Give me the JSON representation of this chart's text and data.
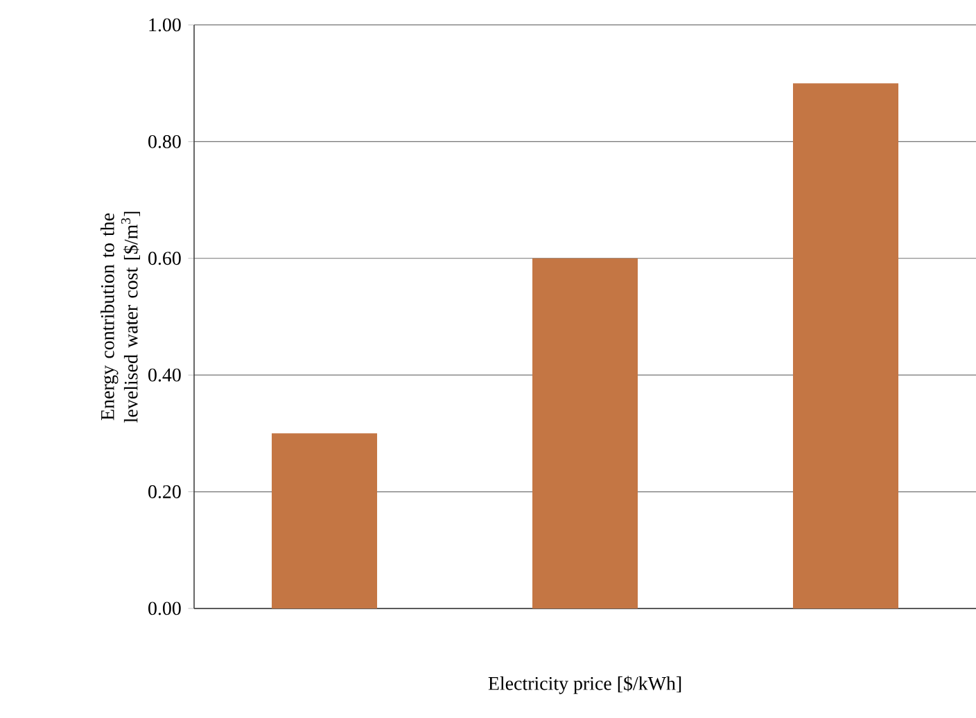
{
  "chart_data": {
    "type": "bar",
    "xlabel": "Electricity price [$/kWh]",
    "ylabel": "Energy contribution to the levelised water cost [$/m$^{3}$]",
    "categories": [
      null,
      null,
      null
    ],
    "values": [
      0.3,
      0.6,
      0.9
    ],
    "color": "#c47644",
    "ylim": [
      0,
      1
    ],
    "yticks": [
      {
        "value": 0,
        "label": "0.00"
      },
      {
        "value": 0.2,
        "label": "0.20"
      },
      {
        "value": 0.4,
        "label": "0.40"
      },
      {
        "value": 0.6,
        "label": "0.60"
      },
      {
        "value": 0.8,
        "label": "0.80"
      },
      {
        "value": 1,
        "label": "1.00"
      }
    ],
    "grid": "y"
  }
}
